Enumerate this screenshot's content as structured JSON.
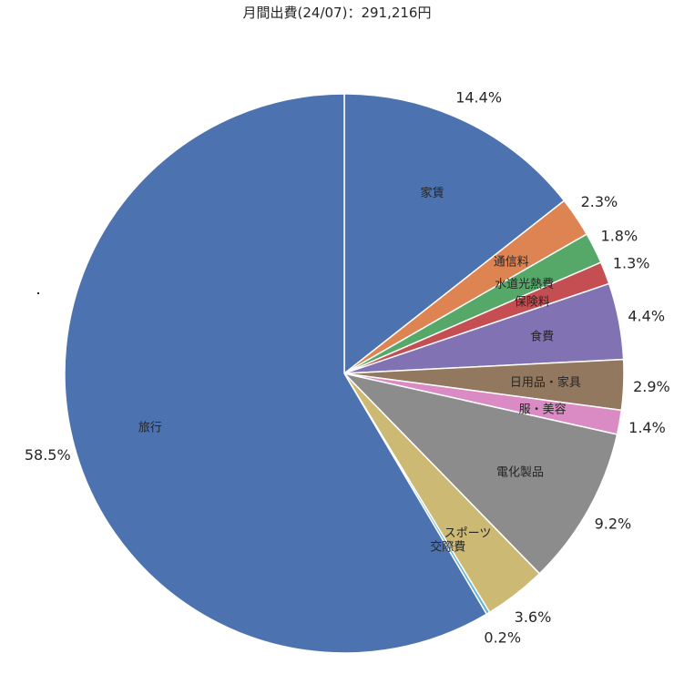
{
  "chart_data": {
    "type": "pie",
    "title": "月間出費(24/07)：291,216円",
    "start": "top",
    "direction": "clockwise",
    "slices": [
      {
        "label": "家賃",
        "value": 14.4,
        "pct_label": "14.4%",
        "color": "#4c72b0"
      },
      {
        "label": "通信料",
        "value": 2.3,
        "pct_label": "2.3%",
        "color": "#dd8452"
      },
      {
        "label": "水道光熱費",
        "value": 1.8,
        "pct_label": "1.8%",
        "color": "#55a868"
      },
      {
        "label": "保険料",
        "value": 1.3,
        "pct_label": "1.3%",
        "color": "#c44e52"
      },
      {
        "label": "食費",
        "value": 4.4,
        "pct_label": "4.4%",
        "color": "#8172b3"
      },
      {
        "label": "日用品・家具",
        "value": 2.9,
        "pct_label": "2.9%",
        "color": "#937860"
      },
      {
        "label": "服・美容",
        "value": 1.4,
        "pct_label": "1.4%",
        "color": "#da8bc3"
      },
      {
        "label": "電化製品",
        "value": 9.2,
        "pct_label": "9.2%",
        "color": "#8c8c8c"
      },
      {
        "label": "スポーツ",
        "value": 3.6,
        "pct_label": "3.6%",
        "color": "#ccb974"
      },
      {
        "label": "交際費",
        "value": 0.2,
        "pct_label": "0.2%",
        "color": "#64b5cd"
      },
      {
        "label": "旅行",
        "value": 58.5,
        "pct_label": "58.5%",
        "color": "#4c72b0"
      }
    ]
  }
}
